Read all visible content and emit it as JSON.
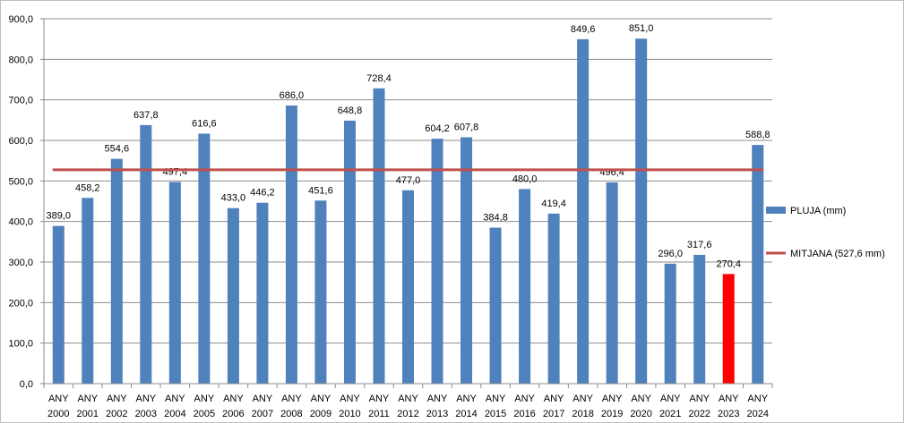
{
  "colors": {
    "bar": "#4f81bd",
    "highlight_bar": "#ff0000",
    "mean_line": "#c0504d",
    "grid": "#8c8c8c",
    "axis": "#8c8c8c"
  },
  "chart_data": {
    "type": "bar",
    "categories": [
      [
        "ANY",
        "2000"
      ],
      [
        "ANY",
        "2001"
      ],
      [
        "ANY",
        "2002"
      ],
      [
        "ANY",
        "2003"
      ],
      [
        "ANY",
        "2004"
      ],
      [
        "ANY",
        "2005"
      ],
      [
        "ANY",
        "2006"
      ],
      [
        "ANY",
        "2007"
      ],
      [
        "ANY",
        "2008"
      ],
      [
        "ANY",
        "2009"
      ],
      [
        "ANY",
        "2010"
      ],
      [
        "ANY",
        "2011"
      ],
      [
        "ANY",
        "2012"
      ],
      [
        "ANY",
        "2013"
      ],
      [
        "ANY",
        "2014"
      ],
      [
        "ANY",
        "2015"
      ],
      [
        "ANY",
        "2016"
      ],
      [
        "ANY",
        "2017"
      ],
      [
        "ANY",
        "2018"
      ],
      [
        "ANY",
        "2019"
      ],
      [
        "ANY",
        "2020"
      ],
      [
        "ANY",
        "2021"
      ],
      [
        "ANY",
        "2022"
      ],
      [
        "ANY",
        "2023"
      ],
      [
        "ANY",
        "2024"
      ]
    ],
    "series": [
      {
        "name": "PLUJA (mm)",
        "type": "bar",
        "values": [
          389.0,
          458.2,
          554.6,
          637.8,
          497.4,
          616.6,
          433.0,
          446.2,
          686.0,
          451.6,
          648.8,
          728.4,
          477.0,
          604.2,
          607.8,
          384.8,
          480.0,
          419.4,
          849.6,
          496.4,
          851.0,
          296.0,
          317.6,
          270.4,
          588.8
        ],
        "data_labels": [
          "389,0",
          "458,2",
          "554,6",
          "637,8",
          "497,4",
          "616,6",
          "433,0",
          "446,2",
          "686,0",
          "451,6",
          "648,8",
          "728,4",
          "477,0",
          "604,2",
          "607,8",
          "384,8",
          "480,0",
          "419,4",
          "849,6",
          "496,4",
          "851,0",
          "296,0",
          "317,6",
          "270,4",
          "588,8"
        ],
        "highlight_index": 23
      },
      {
        "name": "MITJANA (527,6 mm)",
        "type": "line",
        "value": 527.6
      }
    ],
    "ylim": [
      0,
      900
    ],
    "yticks": [
      0,
      100,
      200,
      300,
      400,
      500,
      600,
      700,
      800,
      900
    ],
    "ytick_labels": [
      "0,0",
      "100,0",
      "200,0",
      "300,0",
      "400,0",
      "500,0",
      "600,0",
      "700,0",
      "800,0",
      "900,0"
    ],
    "grid": true,
    "legend_position": "right"
  }
}
